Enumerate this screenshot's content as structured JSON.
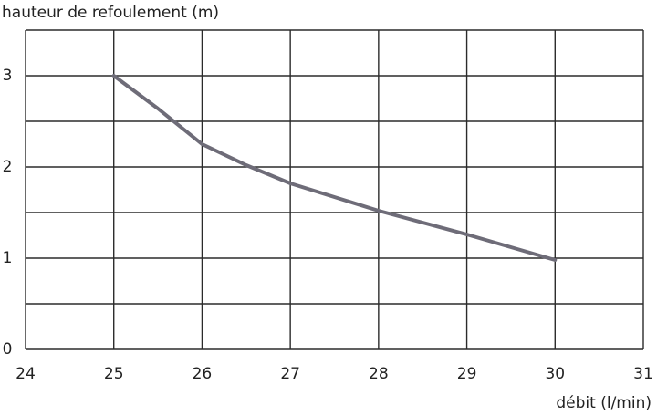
{
  "chart_data": {
    "type": "line",
    "y_label": "hauteur de refoulement (m)",
    "x_label": "débit (l/min)",
    "x": [
      25,
      25.5,
      26,
      26.5,
      27,
      28,
      29,
      30
    ],
    "series": [
      {
        "color": "#6e6c78",
        "values": [
          3.0,
          2.64,
          2.25,
          2.02,
          1.82,
          1.52,
          1.26,
          0.98
        ]
      }
    ],
    "xlim": [
      24,
      31
    ],
    "xticks": [
      24,
      25,
      26,
      27,
      28,
      29,
      30,
      31
    ],
    "ylim": [
      0,
      3.5
    ],
    "yticks": [
      0,
      1,
      2,
      3
    ],
    "y_minor_grid": [
      0.5,
      1.5,
      2.5,
      3.5
    ],
    "grid": true
  }
}
